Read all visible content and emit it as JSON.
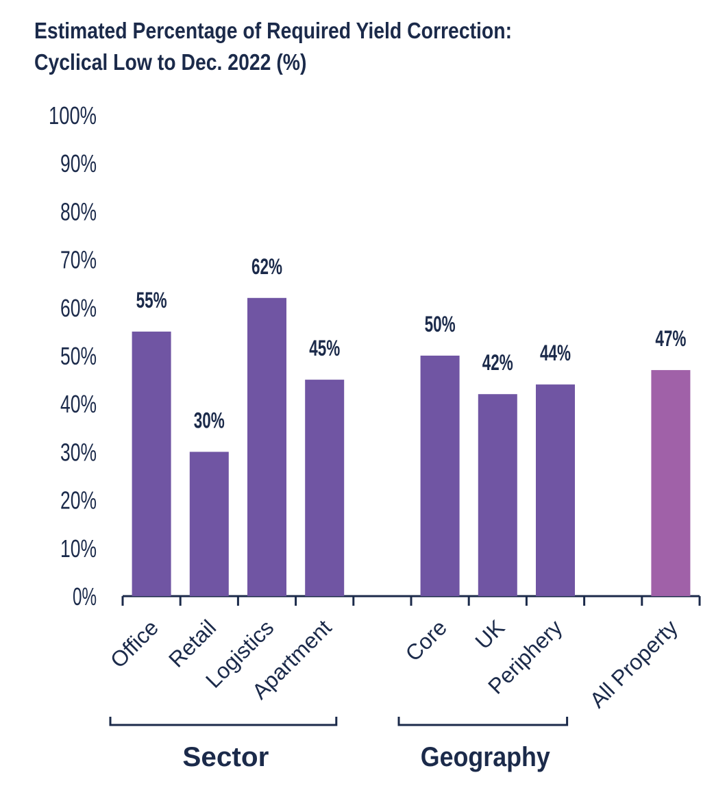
{
  "chart_data": {
    "type": "bar",
    "title_line1": "Estimated Percentage of Required Yield Correction:",
    "title_line2": "Cyclical Low to Dec. 2022 (%)",
    "ylim": [
      0,
      100
    ],
    "yticks": [
      "0%",
      "10%",
      "20%",
      "30%",
      "40%",
      "50%",
      "60%",
      "70%",
      "80%",
      "90%",
      "100%"
    ],
    "categories": [
      "Office",
      "Retail",
      "Logistics",
      "Apartment",
      "",
      "Core",
      "UK",
      "Periphery",
      "",
      "All Property"
    ],
    "values": [
      55,
      30,
      62,
      45,
      null,
      50,
      42,
      44,
      null,
      47
    ],
    "value_labels": [
      "55%",
      "30%",
      "62%",
      "45%",
      "",
      "50%",
      "42%",
      "44%",
      "",
      "47%"
    ],
    "bar_colors": [
      "#7055a3",
      "#7055a3",
      "#7055a3",
      "#7055a3",
      "",
      "#7055a3",
      "#7055a3",
      "#7055a3",
      "",
      "#a061a8"
    ],
    "groups": [
      {
        "label": "Sector",
        "from": 0,
        "to": 3
      },
      {
        "label": "Geography",
        "from": 5,
        "to": 7
      }
    ],
    "text_color": "#1b2a4a"
  }
}
